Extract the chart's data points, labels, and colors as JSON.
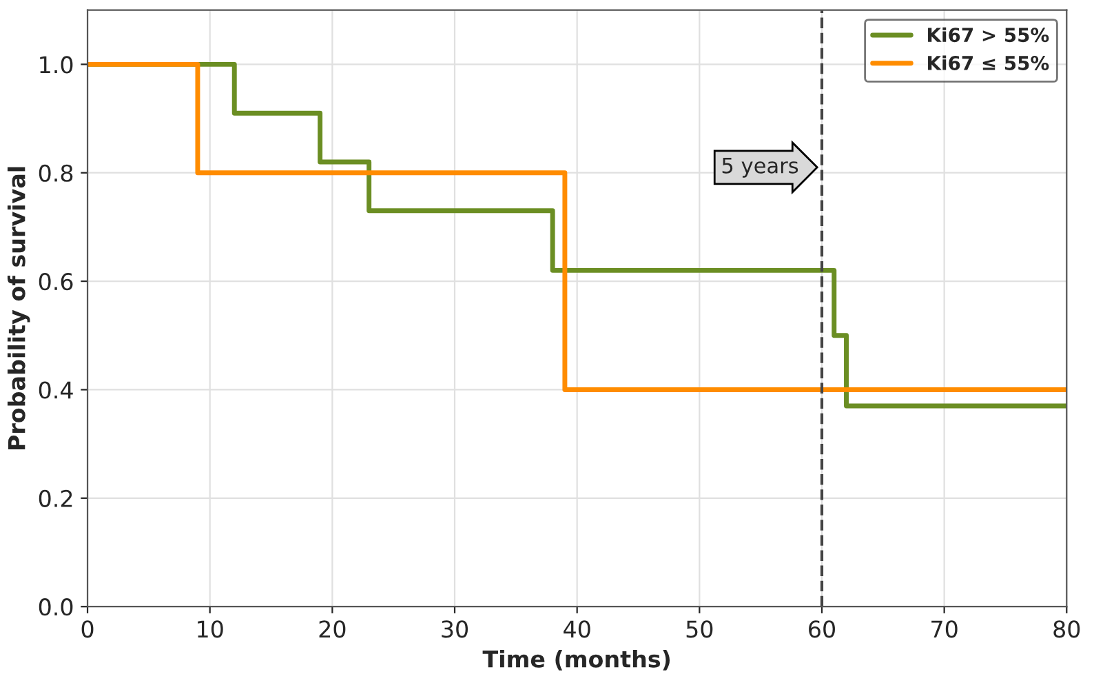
{
  "chart_data": {
    "type": "step",
    "xlabel": "Time (months)",
    "ylabel": "Probability of survival",
    "series": [
      {
        "name": "Ki67 > 55%",
        "color": "#6b8e23",
        "x": [
          0,
          12,
          19,
          23,
          38,
          61,
          62,
          80
        ],
        "values": [
          1.0,
          0.91,
          0.82,
          0.73,
          0.62,
          0.5,
          0.37,
          0.37
        ]
      },
      {
        "name": "Ki67 ≤ 55%",
        "color": "#ff8c00",
        "x": [
          0,
          9,
          39,
          80
        ],
        "values": [
          1.0,
          0.8,
          0.4,
          0.4
        ]
      }
    ],
    "xlim": [
      0,
      80
    ],
    "xticks": [
      0,
      10,
      20,
      30,
      40,
      50,
      60,
      70,
      80
    ],
    "ylim": [
      0,
      1.1
    ],
    "yticks": [
      {
        "value": 0,
        "label": "0.0"
      },
      {
        "value": 0.2,
        "label": "0.2"
      },
      {
        "value": 0.4,
        "label": "0.4"
      },
      {
        "value": 0.6,
        "label": "0.6"
      },
      {
        "value": 0.8,
        "label": "0.8"
      },
      {
        "value": 1.0,
        "label": "1.0"
      }
    ],
    "ref_lines": [
      {
        "axis": "x",
        "value": 60,
        "label": "5 years",
        "color": "#444444",
        "line_style": "dashed"
      }
    ],
    "grid": true,
    "legend": "top right"
  }
}
